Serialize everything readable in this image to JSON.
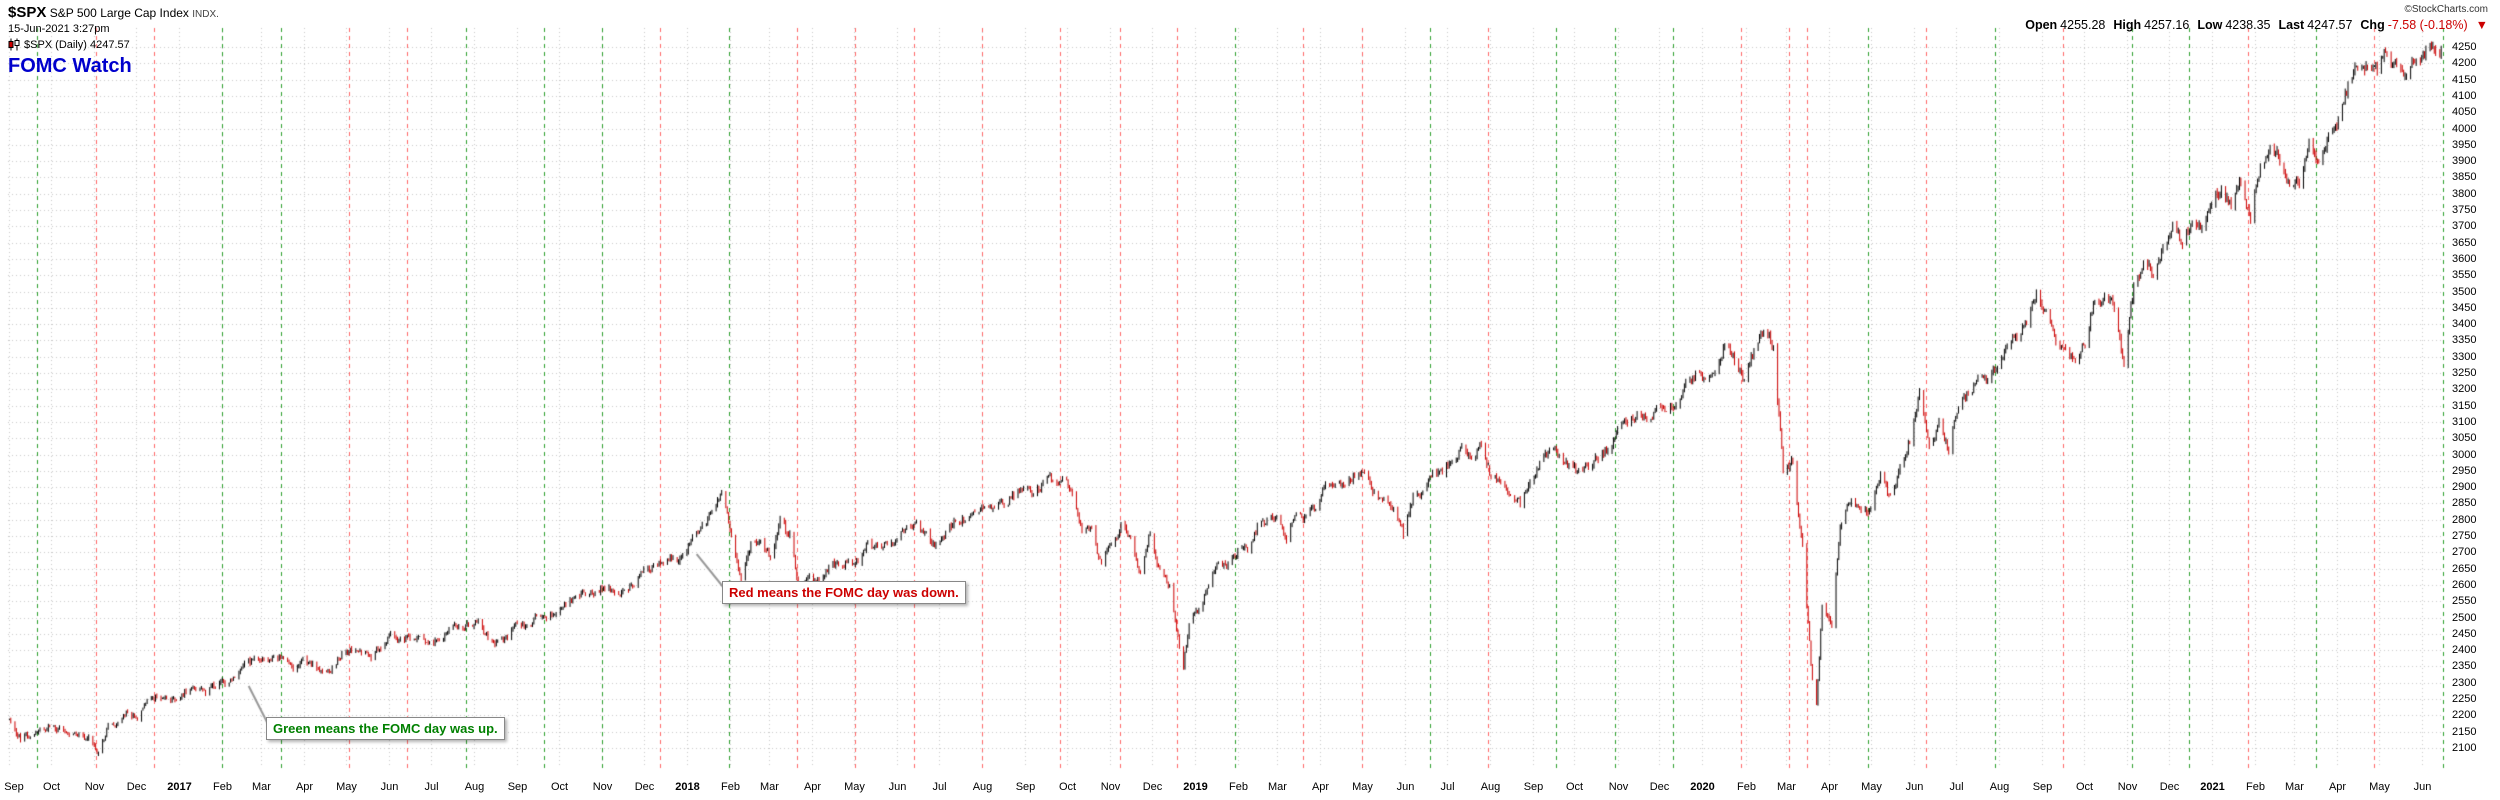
{
  "header": {
    "symbol": "$SPX",
    "name": "S&P 500 Large Cap Index",
    "exchange": "INDX.",
    "datetime": "15-Jun-2021 3:27pm",
    "legend": "$SPX (Daily) 4247.57",
    "title": "FOMC Watch",
    "copyright": "©StockCharts.com",
    "quote": {
      "open_label": "Open",
      "open": "4255.28",
      "high_label": "High",
      "high": "4257.16",
      "low_label": "Low",
      "low": "4238.35",
      "last_label": "Last",
      "last": "4247.57",
      "chg_label": "Chg",
      "chg": "-7.58 (-0.18%)",
      "chg_arrow": "▼"
    }
  },
  "annotations": {
    "red_note": "Red means the FOMC day was down.",
    "green_note": "Green means the FOMC day was up.",
    "red_anchor": {
      "date": "2018-01-08",
      "price": 2695
    },
    "green_anchor": {
      "date": "2017-02-20",
      "price": 2290
    }
  },
  "colors": {
    "title": "#0000cc",
    "bar_up": "#000000",
    "bar_down": "#cc0000",
    "fomc_up": "#2ca02c",
    "fomc_down": "#ff6666",
    "grid": "#c8c8c8",
    "note_down": "#cc0000",
    "note_up": "#008000",
    "negative": "#cc0000"
  },
  "chart_data": {
    "type": "candlestick",
    "title": "FOMC Watch",
    "series_name": "$SPX (Daily)",
    "last": 4247.57,
    "first_date": "2016-09-01",
    "last_date": "2021-06-15",
    "x_range": [
      "2016-08-31",
      "2021-06-17"
    ],
    "y_axis": {
      "min": 2100,
      "max": 4250,
      "ticks": [
        4250,
        4200,
        4150,
        4100,
        4050,
        4000,
        3950,
        3900,
        3850,
        3800,
        3750,
        3700,
        3650,
        3600,
        3550,
        3500,
        3450,
        3400,
        3350,
        3300,
        3250,
        3200,
        3150,
        3100,
        3050,
        3000,
        2950,
        2900,
        2850,
        2800,
        2750,
        2700,
        2650,
        2600,
        2550,
        2500,
        2450,
        2400,
        2350,
        2300,
        2250,
        2200,
        2150,
        2100
      ]
    },
    "x_tick_labels": [
      "Sep",
      "Oct",
      "Nov",
      "Dec",
      "2017",
      "Feb",
      "Mar",
      "Apr",
      "May",
      "Jun",
      "Jul",
      "Aug",
      "Sep",
      "Oct",
      "Nov",
      "Dec",
      "2018",
      "Feb",
      "Mar",
      "Apr",
      "May",
      "Jun",
      "Jul",
      "Aug",
      "Sep",
      "Oct",
      "Nov",
      "Dec",
      "2019",
      "Feb",
      "Mar",
      "Apr",
      "May",
      "Jun",
      "Jul",
      "Aug",
      "Sep",
      "Oct",
      "Nov",
      "Dec",
      "2020",
      "Feb",
      "Mar",
      "Apr",
      "May",
      "Jun",
      "Jul",
      "Aug",
      "Sep",
      "Oct",
      "Nov",
      "Dec",
      "2021",
      "Feb",
      "Mar",
      "Apr",
      "May",
      "Jun"
    ],
    "fomc_days": [
      [
        "2016-09-21",
        "up"
      ],
      [
        "2016-11-02",
        "down"
      ],
      [
        "2016-12-14",
        "down"
      ],
      [
        "2017-02-01",
        "up"
      ],
      [
        "2017-03-15",
        "up"
      ],
      [
        "2017-05-03",
        "down"
      ],
      [
        "2017-06-14",
        "down"
      ],
      [
        "2017-07-26",
        "up"
      ],
      [
        "2017-09-20",
        "up"
      ],
      [
        "2017-11-01",
        "up"
      ],
      [
        "2017-12-13",
        "down"
      ],
      [
        "2018-01-31",
        "up"
      ],
      [
        "2018-03-21",
        "down"
      ],
      [
        "2018-05-02",
        "down"
      ],
      [
        "2018-06-13",
        "down"
      ],
      [
        "2018-08-01",
        "down"
      ],
      [
        "2018-09-26",
        "down"
      ],
      [
        "2018-11-08",
        "down"
      ],
      [
        "2018-12-19",
        "down"
      ],
      [
        "2019-01-30",
        "up"
      ],
      [
        "2019-03-20",
        "down"
      ],
      [
        "2019-05-01",
        "down"
      ],
      [
        "2019-06-19",
        "up"
      ],
      [
        "2019-07-31",
        "down"
      ],
      [
        "2019-09-18",
        "up"
      ],
      [
        "2019-10-30",
        "up"
      ],
      [
        "2019-12-11",
        "up"
      ],
      [
        "2020-01-29",
        "down"
      ],
      [
        "2020-03-03",
        "down"
      ],
      [
        "2020-03-16",
        "down"
      ],
      [
        "2020-04-29",
        "up"
      ],
      [
        "2020-06-10",
        "down"
      ],
      [
        "2020-07-29",
        "up"
      ],
      [
        "2020-09-16",
        "down"
      ],
      [
        "2020-11-05",
        "up"
      ],
      [
        "2020-12-16",
        "up"
      ],
      [
        "2021-01-27",
        "down"
      ],
      [
        "2021-03-17",
        "up"
      ],
      [
        "2021-04-28",
        "down"
      ],
      [
        "2021-06-16",
        "up"
      ]
    ],
    "weekly_closes": [
      [
        "2016-09-02",
        2180
      ],
      [
        "2016-09-09",
        2128
      ],
      [
        "2016-09-16",
        2139
      ],
      [
        "2016-09-23",
        2165
      ],
      [
        "2016-09-30",
        2168
      ],
      [
        "2016-10-07",
        2154
      ],
      [
        "2016-10-14",
        2133
      ],
      [
        "2016-10-21",
        2141
      ],
      [
        "2016-10-28",
        2126
      ],
      [
        "2016-11-04",
        2085
      ],
      [
        "2016-11-11",
        2164
      ],
      [
        "2016-11-18",
        2182
      ],
      [
        "2016-11-25",
        2213
      ],
      [
        "2016-12-02",
        2192
      ],
      [
        "2016-12-09",
        2260
      ],
      [
        "2016-12-16",
        2258
      ],
      [
        "2016-12-23",
        2264
      ],
      [
        "2016-12-30",
        2239
      ],
      [
        "2017-01-06",
        2277
      ],
      [
        "2017-01-13",
        2275
      ],
      [
        "2017-01-20",
        2271
      ],
      [
        "2017-01-27",
        2295
      ],
      [
        "2017-02-03",
        2297
      ],
      [
        "2017-02-10",
        2316
      ],
      [
        "2017-02-17",
        2351
      ],
      [
        "2017-02-24",
        2367
      ],
      [
        "2017-03-03",
        2383
      ],
      [
        "2017-03-10",
        2373
      ],
      [
        "2017-03-17",
        2378
      ],
      [
        "2017-03-24",
        2344
      ],
      [
        "2017-03-31",
        2363
      ],
      [
        "2017-04-07",
        2356
      ],
      [
        "2017-04-13",
        2329
      ],
      [
        "2017-04-21",
        2349
      ],
      [
        "2017-04-28",
        2384
      ],
      [
        "2017-05-05",
        2399
      ],
      [
        "2017-05-12",
        2391
      ],
      [
        "2017-05-19",
        2382
      ],
      [
        "2017-05-26",
        2416
      ],
      [
        "2017-06-02",
        2439
      ],
      [
        "2017-06-09",
        2432
      ],
      [
        "2017-06-16",
        2433
      ],
      [
        "2017-06-23",
        2438
      ],
      [
        "2017-06-30",
        2423
      ],
      [
        "2017-07-07",
        2425
      ],
      [
        "2017-07-14",
        2459
      ],
      [
        "2017-07-21",
        2473
      ],
      [
        "2017-07-28",
        2472
      ],
      [
        "2017-08-04",
        2477
      ],
      [
        "2017-08-11",
        2441
      ],
      [
        "2017-08-18",
        2426
      ],
      [
        "2017-08-25",
        2443
      ],
      [
        "2017-09-01",
        2477
      ],
      [
        "2017-09-08",
        2461
      ],
      [
        "2017-09-15",
        2500
      ],
      [
        "2017-09-22",
        2502
      ],
      [
        "2017-09-29",
        2519
      ],
      [
        "2017-10-06",
        2549
      ],
      [
        "2017-10-13",
        2553
      ],
      [
        "2017-10-20",
        2575
      ],
      [
        "2017-10-27",
        2581
      ],
      [
        "2017-11-03",
        2588
      ],
      [
        "2017-11-10",
        2582
      ],
      [
        "2017-11-17",
        2579
      ],
      [
        "2017-11-24",
        2602
      ],
      [
        "2017-12-01",
        2642
      ],
      [
        "2017-12-08",
        2652
      ],
      [
        "2017-12-15",
        2676
      ],
      [
        "2017-12-22",
        2683
      ],
      [
        "2017-12-29",
        2674
      ],
      [
        "2018-01-05",
        2743
      ],
      [
        "2018-01-12",
        2786
      ],
      [
        "2018-01-19",
        2810
      ],
      [
        "2018-01-26",
        2873
      ],
      [
        "2018-02-02",
        2762
      ],
      [
        "2018-02-09",
        2620
      ],
      [
        "2018-02-16",
        2732
      ],
      [
        "2018-02-23",
        2747
      ],
      [
        "2018-03-02",
        2691
      ],
      [
        "2018-03-09",
        2787
      ],
      [
        "2018-03-16",
        2752
      ],
      [
        "2018-03-23",
        2588
      ],
      [
        "2018-03-29",
        2641
      ],
      [
        "2018-04-06",
        2605
      ],
      [
        "2018-04-13",
        2656
      ],
      [
        "2018-04-20",
        2670
      ],
      [
        "2018-04-27",
        2670
      ],
      [
        "2018-05-04",
        2663
      ],
      [
        "2018-05-11",
        2728
      ],
      [
        "2018-05-18",
        2713
      ],
      [
        "2018-05-25",
        2721
      ],
      [
        "2018-06-01",
        2735
      ],
      [
        "2018-06-08",
        2779
      ],
      [
        "2018-06-15",
        2780
      ],
      [
        "2018-06-22",
        2755
      ],
      [
        "2018-06-29",
        2718
      ],
      [
        "2018-07-06",
        2760
      ],
      [
        "2018-07-13",
        2801
      ],
      [
        "2018-07-20",
        2802
      ],
      [
        "2018-07-27",
        2819
      ],
      [
        "2018-08-03",
        2840
      ],
      [
        "2018-08-10",
        2833
      ],
      [
        "2018-08-17",
        2850
      ],
      [
        "2018-08-24",
        2875
      ],
      [
        "2018-08-31",
        2902
      ],
      [
        "2018-09-07",
        2872
      ],
      [
        "2018-09-14",
        2905
      ],
      [
        "2018-09-21",
        2930
      ],
      [
        "2018-09-28",
        2914
      ],
      [
        "2018-10-05",
        2886
      ],
      [
        "2018-10-12",
        2767
      ],
      [
        "2018-10-19",
        2768
      ],
      [
        "2018-10-26",
        2659
      ],
      [
        "2018-11-02",
        2723
      ],
      [
        "2018-11-09",
        2781
      ],
      [
        "2018-11-16",
        2736
      ],
      [
        "2018-11-23",
        2633
      ],
      [
        "2018-11-30",
        2760
      ],
      [
        "2018-12-07",
        2633
      ],
      [
        "2018-12-14",
        2600
      ],
      [
        "2018-12-21",
        2417
      ],
      [
        "2018-12-24",
        2351
      ],
      [
        "2018-12-28",
        2486
      ],
      [
        "2019-01-04",
        2532
      ],
      [
        "2019-01-11",
        2596
      ],
      [
        "2019-01-18",
        2671
      ],
      [
        "2019-01-25",
        2665
      ],
      [
        "2019-02-01",
        2707
      ],
      [
        "2019-02-08",
        2708
      ],
      [
        "2019-02-15",
        2776
      ],
      [
        "2019-02-22",
        2793
      ],
      [
        "2019-03-01",
        2803
      ],
      [
        "2019-03-08",
        2743
      ],
      [
        "2019-03-15",
        2822
      ],
      [
        "2019-03-22",
        2801
      ],
      [
        "2019-03-29",
        2834
      ],
      [
        "2019-04-05",
        2893
      ],
      [
        "2019-04-12",
        2907
      ],
      [
        "2019-04-18",
        2905
      ],
      [
        "2019-04-26",
        2940
      ],
      [
        "2019-05-03",
        2946
      ],
      [
        "2019-05-10",
        2881
      ],
      [
        "2019-05-17",
        2860
      ],
      [
        "2019-05-24",
        2826
      ],
      [
        "2019-05-31",
        2752
      ],
      [
        "2019-06-07",
        2873
      ],
      [
        "2019-06-14",
        2887
      ],
      [
        "2019-06-21",
        2950
      ],
      [
        "2019-06-28",
        2942
      ],
      [
        "2019-07-05",
        2990
      ],
      [
        "2019-07-12",
        3014
      ],
      [
        "2019-07-19",
        2977
      ],
      [
        "2019-07-26",
        3026
      ],
      [
        "2019-08-02",
        2932
      ],
      [
        "2019-08-09",
        2919
      ],
      [
        "2019-08-16",
        2889
      ],
      [
        "2019-08-23",
        2847
      ],
      [
        "2019-08-30",
        2926
      ],
      [
        "2019-09-06",
        2979
      ],
      [
        "2019-09-13",
        3007
      ],
      [
        "2019-09-20",
        2992
      ],
      [
        "2019-09-27",
        2962
      ],
      [
        "2019-10-04",
        2952
      ],
      [
        "2019-10-11",
        2970
      ],
      [
        "2019-10-18",
        2986
      ],
      [
        "2019-10-25",
        3023
      ],
      [
        "2019-11-01",
        3067
      ],
      [
        "2019-11-08",
        3093
      ],
      [
        "2019-11-15",
        3120
      ],
      [
        "2019-11-22",
        3110
      ],
      [
        "2019-11-29",
        3141
      ],
      [
        "2019-12-06",
        3146
      ],
      [
        "2019-12-13",
        3169
      ],
      [
        "2019-12-20",
        3221
      ],
      [
        "2019-12-27",
        3240
      ],
      [
        "2020-01-03",
        3235
      ],
      [
        "2020-01-10",
        3265
      ],
      [
        "2020-01-17",
        3330
      ],
      [
        "2020-01-24",
        3296
      ],
      [
        "2020-01-31",
        3226
      ],
      [
        "2020-02-07",
        3328
      ],
      [
        "2020-02-14",
        3380
      ],
      [
        "2020-02-21",
        3338
      ],
      [
        "2020-02-28",
        2954
      ],
      [
        "2020-03-06",
        2972
      ],
      [
        "2020-03-13",
        2711
      ],
      [
        "2020-03-20",
        2305
      ],
      [
        "2020-03-23",
        2237
      ],
      [
        "2020-03-27",
        2541
      ],
      [
        "2020-04-03",
        2489
      ],
      [
        "2020-04-09",
        2790
      ],
      [
        "2020-04-17",
        2875
      ],
      [
        "2020-04-24",
        2837
      ],
      [
        "2020-05-01",
        2831
      ],
      [
        "2020-05-08",
        2930
      ],
      [
        "2020-05-15",
        2864
      ],
      [
        "2020-05-22",
        2955
      ],
      [
        "2020-05-29",
        3044
      ],
      [
        "2020-06-05",
        3194
      ],
      [
        "2020-06-12",
        3041
      ],
      [
        "2020-06-19",
        3098
      ],
      [
        "2020-06-26",
        3009
      ],
      [
        "2020-07-02",
        3130
      ],
      [
        "2020-07-10",
        3185
      ],
      [
        "2020-07-17",
        3225
      ],
      [
        "2020-07-24",
        3216
      ],
      [
        "2020-07-31",
        3271
      ],
      [
        "2020-08-07",
        3351
      ],
      [
        "2020-08-14",
        3373
      ],
      [
        "2020-08-21",
        3397
      ],
      [
        "2020-08-28",
        3508
      ],
      [
        "2020-09-04",
        3427
      ],
      [
        "2020-09-11",
        3341
      ],
      [
        "2020-09-18",
        3319
      ],
      [
        "2020-09-25",
        3298
      ],
      [
        "2020-10-02",
        3348
      ],
      [
        "2020-10-09",
        3477
      ],
      [
        "2020-10-16",
        3484
      ],
      [
        "2020-10-23",
        3465
      ],
      [
        "2020-10-30",
        3270
      ],
      [
        "2020-11-06",
        3509
      ],
      [
        "2020-11-13",
        3585
      ],
      [
        "2020-11-20",
        3558
      ],
      [
        "2020-11-27",
        3638
      ],
      [
        "2020-12-04",
        3699
      ],
      [
        "2020-12-11",
        3663
      ],
      [
        "2020-12-18",
        3709
      ],
      [
        "2020-12-24",
        3703
      ],
      [
        "2020-12-31",
        3756
      ],
      [
        "2021-01-08",
        3825
      ],
      [
        "2021-01-15",
        3768
      ],
      [
        "2021-01-22",
        3841
      ],
      [
        "2021-01-29",
        3714
      ],
      [
        "2021-02-05",
        3887
      ],
      [
        "2021-02-12",
        3935
      ],
      [
        "2021-02-19",
        3907
      ],
      [
        "2021-02-26",
        3811
      ],
      [
        "2021-03-05",
        3842
      ],
      [
        "2021-03-12",
        3943
      ],
      [
        "2021-03-19",
        3913
      ],
      [
        "2021-03-26",
        3975
      ],
      [
        "2021-04-01",
        4020
      ],
      [
        "2021-04-09",
        4129
      ],
      [
        "2021-04-16",
        4185
      ],
      [
        "2021-04-23",
        4180
      ],
      [
        "2021-04-30",
        4181
      ],
      [
        "2021-05-07",
        4233
      ],
      [
        "2021-05-14",
        4174
      ],
      [
        "2021-05-21",
        4156
      ],
      [
        "2021-05-28",
        4204
      ],
      [
        "2021-06-04",
        4230
      ],
      [
        "2021-06-11",
        4247
      ],
      [
        "2021-06-15",
        4247.57
      ]
    ]
  }
}
